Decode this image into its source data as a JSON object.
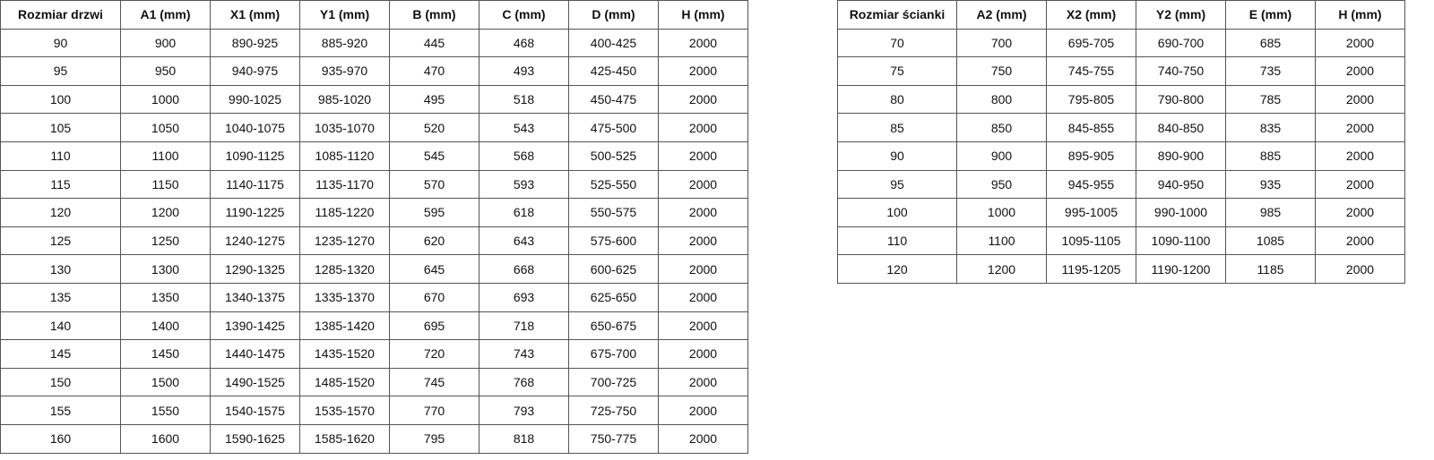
{
  "door_table": {
    "headers": [
      "Rozmiar drzwi",
      "A1 (mm)",
      "X1 (mm)",
      "Y1 (mm)",
      "B (mm)",
      "C (mm)",
      "D (mm)",
      "H (mm)"
    ],
    "rows": [
      [
        "90",
        "900",
        "890-925",
        "885-920",
        "445",
        "468",
        "400-425",
        "2000"
      ],
      [
        "95",
        "950",
        "940-975",
        "935-970",
        "470",
        "493",
        "425-450",
        "2000"
      ],
      [
        "100",
        "1000",
        "990-1025",
        "985-1020",
        "495",
        "518",
        "450-475",
        "2000"
      ],
      [
        "105",
        "1050",
        "1040-1075",
        "1035-1070",
        "520",
        "543",
        "475-500",
        "2000"
      ],
      [
        "110",
        "1100",
        "1090-1125",
        "1085-1120",
        "545",
        "568",
        "500-525",
        "2000"
      ],
      [
        "115",
        "1150",
        "1140-1175",
        "1135-1170",
        "570",
        "593",
        "525-550",
        "2000"
      ],
      [
        "120",
        "1200",
        "1190-1225",
        "1185-1220",
        "595",
        "618",
        "550-575",
        "2000"
      ],
      [
        "125",
        "1250",
        "1240-1275",
        "1235-1270",
        "620",
        "643",
        "575-600",
        "2000"
      ],
      [
        "130",
        "1300",
        "1290-1325",
        "1285-1320",
        "645",
        "668",
        "600-625",
        "2000"
      ],
      [
        "135",
        "1350",
        "1340-1375",
        "1335-1370",
        "670",
        "693",
        "625-650",
        "2000"
      ],
      [
        "140",
        "1400",
        "1390-1425",
        "1385-1420",
        "695",
        "718",
        "650-675",
        "2000"
      ],
      [
        "145",
        "1450",
        "1440-1475",
        "1435-1520",
        "720",
        "743",
        "675-700",
        "2000"
      ],
      [
        "150",
        "1500",
        "1490-1525",
        "1485-1520",
        "745",
        "768",
        "700-725",
        "2000"
      ],
      [
        "155",
        "1550",
        "1540-1575",
        "1535-1570",
        "770",
        "793",
        "725-750",
        "2000"
      ],
      [
        "160",
        "1600",
        "1590-1625",
        "1585-1620",
        "795",
        "818",
        "750-775",
        "2000"
      ]
    ]
  },
  "wall_table": {
    "headers": [
      "Rozmiar ścianki",
      "A2 (mm)",
      "X2 (mm)",
      "Y2 (mm)",
      "E (mm)",
      "H (mm)"
    ],
    "rows": [
      [
        "70",
        "700",
        "695-705",
        "690-700",
        "685",
        "2000"
      ],
      [
        "75",
        "750",
        "745-755",
        "740-750",
        "735",
        "2000"
      ],
      [
        "80",
        "800",
        "795-805",
        "790-800",
        "785",
        "2000"
      ],
      [
        "85",
        "850",
        "845-855",
        "840-850",
        "835",
        "2000"
      ],
      [
        "90",
        "900",
        "895-905",
        "890-900",
        "885",
        "2000"
      ],
      [
        "95",
        "950",
        "945-955",
        "940-950",
        "935",
        "2000"
      ],
      [
        "100",
        "1000",
        "995-1005",
        "990-1000",
        "985",
        "2000"
      ],
      [
        "110",
        "1100",
        "1095-1105",
        "1090-1100",
        "1085",
        "2000"
      ],
      [
        "120",
        "1200",
        "1195-1205",
        "1190-1200",
        "1185",
        "2000"
      ]
    ]
  }
}
